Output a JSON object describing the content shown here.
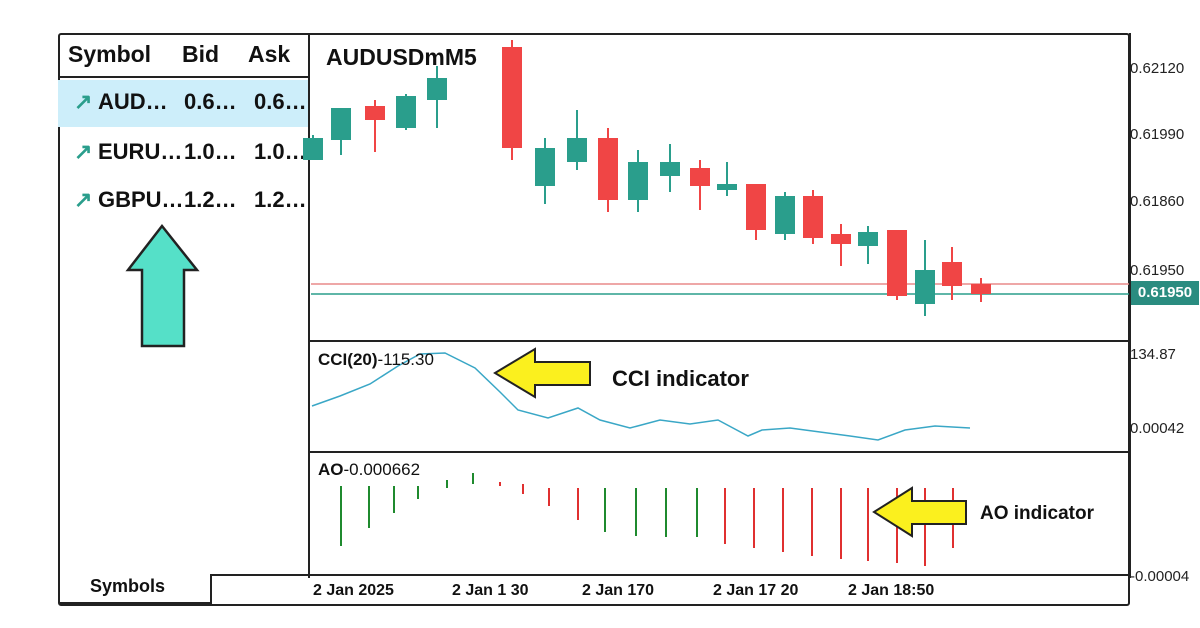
{
  "market_watch": {
    "headers": {
      "symbol": "Symbol",
      "bid": "Bid",
      "ask": "Ask"
    },
    "rows": [
      {
        "symbol": "AUD…",
        "bid": "0.6…",
        "ask": "0.6…",
        "selected": true
      },
      {
        "symbol": "EURU…",
        "bid": "1.0…",
        "ask": "1.0…",
        "selected": false
      },
      {
        "symbol": "GBPU…",
        "bid": "1.2…",
        "ask": "1.2…",
        "selected": false
      }
    ],
    "tab": "Symbols",
    "arrow_color": "#55e0c8"
  },
  "chart": {
    "title": "AUDUSDmM5",
    "price_ticks": [
      "0.62120",
      "0.61990",
      "0.61860",
      "0.61950"
    ],
    "current_price": "0.61950",
    "bull_color": "#2a9e8c",
    "bear_color": "#f04545",
    "cci": {
      "label": "CCI(20)",
      "value": "-115.30",
      "ticks": [
        "134.87",
        "0.00042"
      ],
      "annotation": "CCI indicator",
      "line_color": "#3aa7c6"
    },
    "ao": {
      "label": "AO",
      "value": "-0.000662",
      "ticks": [
        "-0.00004"
      ],
      "annotation": "AO indicator"
    },
    "x_ticks": [
      "2 Jan 2025",
      "2 Jan 1 30",
      "2 Jan 170",
      "2 Jan 17 20",
      "2 Jan 18:50"
    ],
    "annotation_arrow_color": "#fbf01e"
  }
}
